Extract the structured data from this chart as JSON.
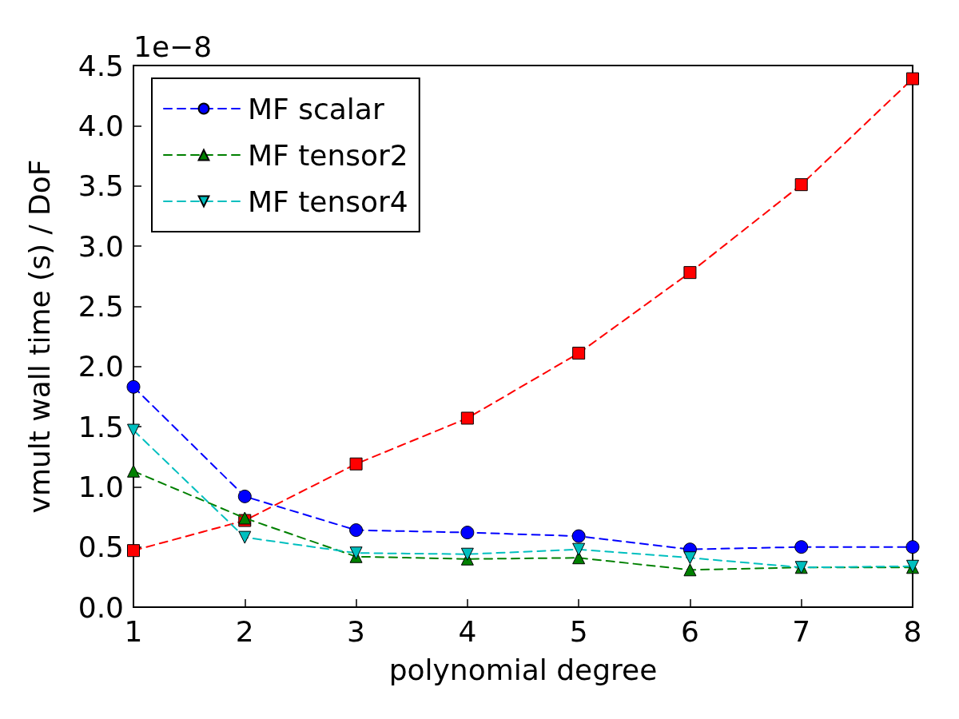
{
  "chart_data": {
    "type": "line",
    "xlabel": "polynomial degree",
    "ylabel": "vmult wall time (s) / DoF",
    "annotations": [
      "1e−8"
    ],
    "x": [
      1,
      2,
      3,
      4,
      5,
      6,
      7,
      8
    ],
    "series": [
      {
        "color": "#ff0000",
        "marker": "square",
        "values": [
          0.47,
          0.72,
          1.19,
          1.57,
          2.11,
          2.78,
          3.51,
          4.39
        ]
      },
      {
        "name": "MF scalar",
        "color": "#0000ff",
        "marker": "circle",
        "values": [
          1.83,
          0.92,
          0.64,
          0.62,
          0.59,
          0.48,
          0.5,
          0.5
        ]
      },
      {
        "name": "MF tensor2",
        "color": "#008000",
        "marker": "triangle",
        "values": [
          1.13,
          0.74,
          0.42,
          0.4,
          0.41,
          0.31,
          0.33,
          0.33
        ]
      },
      {
        "name": "MF tensor4",
        "color": "#00bfbf",
        "marker": "triangle-down",
        "values": [
          1.47,
          0.58,
          0.45,
          0.44,
          0.48,
          0.41,
          0.33,
          0.34
        ]
      }
    ],
    "xlim": [
      1,
      8
    ],
    "xticks": [
      1,
      2,
      3,
      4,
      5,
      6,
      7,
      8
    ],
    "ylim": [
      0,
      4.5
    ],
    "yticks": [
      {
        "value": 0,
        "label": "0.0"
      },
      {
        "value": 0.5,
        "label": "0.5"
      },
      {
        "value": 1,
        "label": "1.0"
      },
      {
        "value": 1.5,
        "label": "1.5"
      },
      {
        "value": 2,
        "label": "2.0"
      },
      {
        "value": 2.5,
        "label": "2.5"
      },
      {
        "value": 3,
        "label": "3.0"
      },
      {
        "value": 3.5,
        "label": "3.5"
      },
      {
        "value": 4,
        "label": "4.0"
      },
      {
        "value": 4.5,
        "label": "4.5"
      }
    ],
    "grid": false,
    "legend": "top left",
    "line_style": "dashed"
  }
}
